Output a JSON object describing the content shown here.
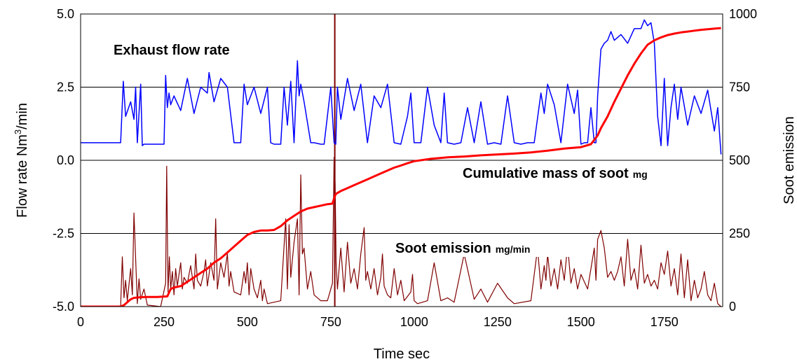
{
  "chart_data": {
    "type": "line",
    "title": "",
    "xlabel": "Time  sec",
    "ylabel_left": {
      "prefix": "Flow rate  Nm",
      "sup": "3",
      "suffix": "/min"
    },
    "ylabel_right": "Soot emission",
    "xlim": [
      0,
      1925
    ],
    "ylim_left": [
      -5.0,
      5.0
    ],
    "ylim_right": [
      0,
      1000
    ],
    "x_ticks": [
      "0",
      "250",
      "500",
      "750",
      "1000",
      "1250",
      "1500",
      "1750"
    ],
    "y_left_ticks": [
      "-5.0",
      "-2.5",
      "0.0",
      "2.5",
      "5.0"
    ],
    "y_right_ticks": [
      "0",
      "250",
      "500",
      "750",
      "1000"
    ],
    "grid": "horizontal",
    "annotations": {
      "exhaust": "Exhaust flow rate",
      "cumulative": "Cumulative mass of soot",
      "cumulative_unit": "mg",
      "soot": "Soot emission",
      "soot_unit": "mg/min"
    },
    "series": [
      {
        "key": "exhaust",
        "axis": "left",
        "color": "#0000ff",
        "x": [
          0,
          120,
          128,
          135,
          150,
          160,
          165,
          170,
          180,
          185,
          190,
          200,
          240,
          250,
          255,
          260,
          265,
          270,
          280,
          300,
          320,
          340,
          360,
          380,
          385,
          400,
          420,
          440,
          460,
          480,
          490,
          500,
          520,
          540,
          560,
          570,
          580,
          600,
          610,
          620,
          630,
          640,
          650,
          655,
          660,
          670,
          690,
          700,
          720,
          730,
          750,
          760,
          765,
          770,
          780,
          800,
          820,
          840,
          860,
          880,
          900,
          920,
          940,
          960,
          980,
          990,
          1000,
          1020,
          1040,
          1060,
          1080,
          1090,
          1100,
          1120,
          1140,
          1160,
          1180,
          1200,
          1220,
          1240,
          1260,
          1280,
          1300,
          1320,
          1340,
          1360,
          1380,
          1390,
          1400,
          1420,
          1440,
          1460,
          1480,
          1490,
          1500,
          1510,
          1520,
          1530,
          1540,
          1545,
          1550,
          1560,
          1570,
          1580,
          1590,
          1600,
          1620,
          1640,
          1660,
          1680,
          1690,
          1700,
          1710,
          1720,
          1730,
          1740,
          1750,
          1760,
          1770,
          1780,
          1790,
          1800,
          1820,
          1840,
          1860,
          1880,
          1900,
          1910,
          1920
        ],
        "y": [
          0.6,
          0.6,
          2.7,
          1.5,
          2.0,
          1.4,
          2.5,
          0.6,
          2.6,
          0.5,
          0.55,
          0.55,
          0.55,
          0.55,
          2.9,
          1.8,
          2.3,
          1.9,
          2.2,
          1.7,
          2.8,
          1.6,
          2.5,
          2.3,
          3.0,
          2.0,
          2.8,
          2.5,
          0.6,
          0.6,
          2.6,
          1.9,
          2.5,
          1.6,
          2.5,
          0.6,
          0.55,
          0.55,
          2.5,
          1.2,
          2.7,
          0.6,
          3.4,
          2.2,
          2.6,
          2.0,
          0.6,
          0.6,
          0.55,
          0.55,
          2.5,
          0.6,
          0.55,
          2.5,
          1.4,
          2.8,
          1.7,
          2.6,
          0.6,
          2.2,
          1.8,
          2.6,
          0.6,
          0.55,
          1.5,
          2.3,
          0.6,
          0.6,
          2.5,
          1.2,
          0.6,
          2.3,
          0.6,
          0.55,
          0.6,
          1.8,
          0.6,
          2.0,
          0.55,
          0.6,
          0.55,
          2.2,
          0.6,
          0.55,
          0.6,
          0.6,
          2.3,
          1.6,
          2.6,
          1.9,
          0.6,
          2.6,
          1.6,
          2.4,
          0.55,
          0.6,
          0.6,
          1.8,
          0.6,
          0.6,
          2.2,
          3.8,
          4.0,
          4.1,
          4.4,
          4.1,
          4.3,
          4.0,
          4.5,
          4.5,
          4.8,
          4.6,
          4.7,
          4.0,
          1.5,
          0.5,
          2.8,
          0.5,
          1.8,
          2.6,
          1.4,
          2.5,
          1.2,
          2.2,
          1.6,
          2.4,
          1.0,
          1.8,
          0.2
        ]
      },
      {
        "key": "cumulative",
        "axis": "right",
        "color": "#ff0000",
        "x": [
          0,
          120,
          130,
          140,
          150,
          160,
          180,
          200,
          230,
          260,
          270,
          280,
          300,
          320,
          340,
          360,
          380,
          400,
          420,
          440,
          460,
          480,
          500,
          520,
          540,
          560,
          580,
          600,
          620,
          640,
          660,
          680,
          700,
          720,
          740,
          755,
          760,
          765,
          780,
          800,
          820,
          840,
          860,
          880,
          900,
          920,
          940,
          960,
          980,
          1000,
          1050,
          1100,
          1150,
          1200,
          1250,
          1300,
          1350,
          1400,
          1450,
          1500,
          1530,
          1550,
          1560,
          1580,
          1600,
          1620,
          1640,
          1660,
          1680,
          1700,
          1720,
          1740,
          1760,
          1780,
          1800,
          1820,
          1840,
          1860,
          1880,
          1900,
          1920
        ],
        "y": [
          0,
          0,
          5,
          15,
          25,
          30,
          32,
          33,
          33,
          35,
          60,
          65,
          70,
          85,
          100,
          115,
          130,
          150,
          165,
          185,
          205,
          225,
          245,
          255,
          260,
          260,
          262,
          275,
          295,
          310,
          325,
          335,
          340,
          345,
          350,
          352,
          370,
          385,
          395,
          405,
          415,
          425,
          435,
          445,
          455,
          465,
          475,
          482,
          490,
          497,
          505,
          510,
          513,
          517,
          520,
          523,
          527,
          533,
          540,
          545,
          555,
          585,
          610,
          650,
          700,
          745,
          790,
          830,
          865,
          895,
          910,
          920,
          928,
          933,
          937,
          940,
          943,
          946,
          948,
          950,
          952
        ]
      },
      {
        "key": "soot",
        "axis": "right",
        "color": "#800000",
        "x": [
          0,
          120,
          125,
          130,
          135,
          140,
          150,
          155,
          160,
          170,
          175,
          180,
          190,
          200,
          240,
          255,
          258,
          262,
          266,
          270,
          275,
          280,
          285,
          290,
          300,
          305,
          310,
          320,
          330,
          340,
          345,
          350,
          360,
          370,
          375,
          380,
          390,
          400,
          405,
          410,
          420,
          430,
          440,
          445,
          450,
          460,
          480,
          490,
          495,
          500,
          505,
          510,
          520,
          530,
          540,
          545,
          550,
          560,
          600,
          615,
          620,
          625,
          630,
          640,
          650,
          655,
          660,
          665,
          670,
          680,
          690,
          700,
          720,
          740,
          755,
          760,
          763,
          766,
          770,
          780,
          790,
          800,
          810,
          820,
          830,
          840,
          850,
          855,
          860,
          870,
          880,
          890,
          900,
          905,
          910,
          920,
          930,
          940,
          950,
          960,
          970,
          990,
          995,
          1000,
          1010,
          1040,
          1060,
          1080,
          1100,
          1120,
          1150,
          1180,
          1200,
          1220,
          1250,
          1280,
          1300,
          1350,
          1370,
          1380,
          1390,
          1395,
          1400,
          1410,
          1420,
          1430,
          1440,
          1450,
          1460,
          1470,
          1480,
          1490,
          1500,
          1520,
          1540,
          1545,
          1550,
          1560,
          1570,
          1580,
          1590,
          1600,
          1610,
          1620,
          1630,
          1640,
          1650,
          1660,
          1670,
          1680,
          1690,
          1700,
          1710,
          1720,
          1730,
          1740,
          1750,
          1760,
          1770,
          1780,
          1790,
          1800,
          1810,
          1820,
          1830,
          1840,
          1850,
          1860,
          1870,
          1880,
          1890,
          1900,
          1910,
          1920
        ],
        "y": [
          0,
          0,
          170,
          30,
          90,
          20,
          130,
          40,
          320,
          10,
          95,
          25,
          60,
          5,
          0,
          80,
          480,
          50,
          170,
          60,
          120,
          40,
          130,
          70,
          150,
          60,
          100,
          80,
          140,
          60,
          180,
          90,
          70,
          120,
          160,
          70,
          150,
          90,
          300,
          60,
          150,
          100,
          180,
          70,
          120,
          50,
          40,
          120,
          80,
          150,
          40,
          130,
          60,
          30,
          90,
          20,
          60,
          10,
          20,
          300,
          60,
          280,
          100,
          220,
          300,
          40,
          450,
          180,
          200,
          60,
          120,
          40,
          20,
          20,
          80,
          510,
          420,
          150,
          60,
          200,
          50,
          220,
          80,
          130,
          60,
          180,
          270,
          90,
          120,
          60,
          130,
          40,
          100,
          180,
          70,
          40,
          30,
          130,
          40,
          90,
          20,
          50,
          110,
          20,
          10,
          20,
          150,
          20,
          30,
          15,
          180,
          25,
          60,
          15,
          80,
          30,
          10,
          20,
          200,
          60,
          140,
          90,
          180,
          70,
          130,
          60,
          160,
          90,
          210,
          80,
          130,
          60,
          110,
          60,
          200,
          90,
          230,
          260,
          200,
          100,
          120,
          90,
          120,
          170,
          70,
          230,
          90,
          130,
          60,
          210,
          80,
          110,
          70,
          90,
          60,
          150,
          110,
          190,
          70,
          130,
          40,
          180,
          30,
          160,
          20,
          90,
          30,
          60,
          120,
          40,
          20,
          80,
          10,
          0
        ]
      },
      {
        "key": "spike_marker",
        "axis": "right",
        "color": "#800000",
        "x": [
          762,
          762
        ],
        "y": [
          0,
          1000
        ]
      }
    ]
  }
}
